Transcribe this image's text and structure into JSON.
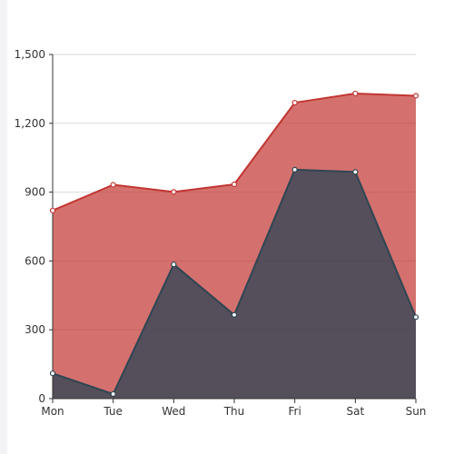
{
  "chart_data": {
    "type": "area",
    "stacked": false,
    "categories": [
      "Mon",
      "Tue",
      "Wed",
      "Thu",
      "Fri",
      "Sat",
      "Sun"
    ],
    "series": [
      {
        "values": [
          820,
          932,
          901,
          934,
          1290,
          1330,
          1320
        ],
        "color": "#c23531"
      },
      {
        "values": [
          110,
          20,
          585,
          365,
          998,
          988,
          355
        ],
        "color": "#2f4554"
      }
    ],
    "ylim": [
      0,
      1500
    ],
    "yticks": [
      "0",
      "300",
      "600",
      "900",
      "1,200",
      "1,500"
    ],
    "grid": true,
    "title": "",
    "xlabel": "",
    "ylabel": ""
  }
}
